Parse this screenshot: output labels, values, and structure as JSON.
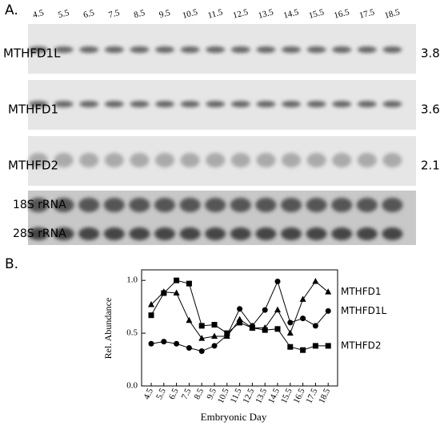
{
  "panel_a": {
    "label": "A.",
    "lanes": [
      "4.5",
      "5.5",
      "6.5",
      "7.5",
      "8.5",
      "9.5",
      "10.5",
      "11.5",
      "12.5",
      "13.5",
      "14.5",
      "15.5",
      "16.5",
      "17.5",
      "18.5"
    ],
    "blots": [
      {
        "name": "MTHFD1L",
        "size": "3.8"
      },
      {
        "name": "MTHFD1",
        "size": "3.6"
      },
      {
        "name": "MTHFD2",
        "size": "2.1"
      }
    ],
    "rrna": [
      "18S rRNA",
      "28S rRNA"
    ]
  },
  "panel_b": {
    "label": "B."
  },
  "chart_data": {
    "type": "line",
    "x_label": "Embryonic Day",
    "y_label": "Rel. Abundance",
    "categories": [
      "4.5",
      "5.5",
      "6.5",
      "7.5",
      "8.5",
      "9.5",
      "10.5",
      "11.5",
      "12.5",
      "13.5",
      "14.5",
      "15.5",
      "16.5",
      "17.5",
      "18.5"
    ],
    "ylim": [
      0,
      1.1
    ],
    "yticks": [
      {
        "value": 0,
        "label": "0.0"
      },
      0.5,
      {
        "value": 1,
        "label": "1.0"
      }
    ],
    "series": [
      {
        "name": "MTHFD1",
        "color": "#000000",
        "marker": "triangle",
        "values": [
          0.77,
          0.89,
          0.88,
          0.62,
          0.45,
          0.47,
          0.47,
          0.63,
          0.55,
          0.55,
          0.72,
          0.5,
          0.82,
          0.99,
          0.89
        ]
      },
      {
        "name": "MTHFD1L",
        "color": "#000000",
        "marker": "circle",
        "values": [
          0.4,
          0.42,
          0.4,
          0.36,
          0.33,
          0.38,
          0.48,
          0.73,
          0.57,
          0.72,
          0.99,
          0.6,
          0.64,
          0.57,
          0.71
        ]
      },
      {
        "name": "MTHFD2",
        "color": "#000000",
        "marker": "square",
        "values": [
          0.67,
          0.88,
          1.0,
          0.97,
          0.57,
          0.58,
          0.5,
          0.6,
          0.55,
          0.53,
          0.54,
          0.37,
          0.34,
          0.38,
          0.38
        ]
      }
    ]
  }
}
